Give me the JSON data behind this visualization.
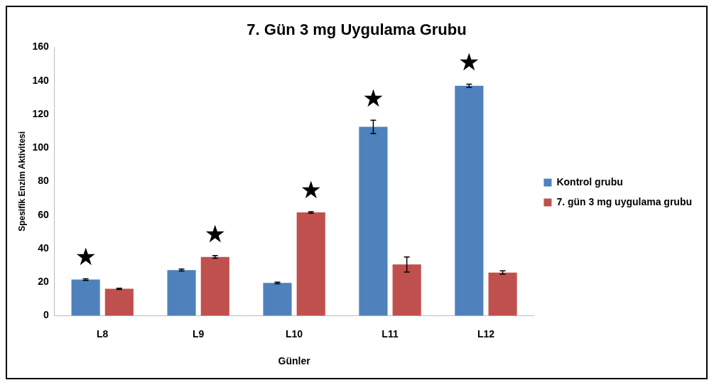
{
  "chart_data": {
    "type": "bar",
    "title": "7. Gün 3 mg Uygulama Grubu",
    "xlabel": "Günler",
    "ylabel": "Spesifik Enzim Aktivitesi",
    "categories": [
      "L8",
      "L9",
      "L10",
      "L11",
      "L12"
    ],
    "series": [
      {
        "name": "Kontrol grubu",
        "color": "#4f81bd",
        "values": [
          21.5,
          27.2,
          19.5,
          112.5,
          137
        ],
        "errors": [
          0.5,
          0.6,
          0.5,
          4,
          1
        ]
      },
      {
        "name": "7. gün 3 mg uygulama grubu",
        "color": "#c0504d",
        "values": [
          16,
          35,
          61.5,
          30.5,
          25.7
        ],
        "errors": [
          0.4,
          0.8,
          0.5,
          4.5,
          1
        ]
      }
    ],
    "ylim": [
      0,
      160
    ],
    "yticks": [
      0,
      20,
      40,
      60,
      80,
      100,
      120,
      140,
      160
    ],
    "grid": false,
    "legend": "right",
    "annotations": [
      "★",
      "★",
      "★",
      "★",
      "★"
    ]
  }
}
